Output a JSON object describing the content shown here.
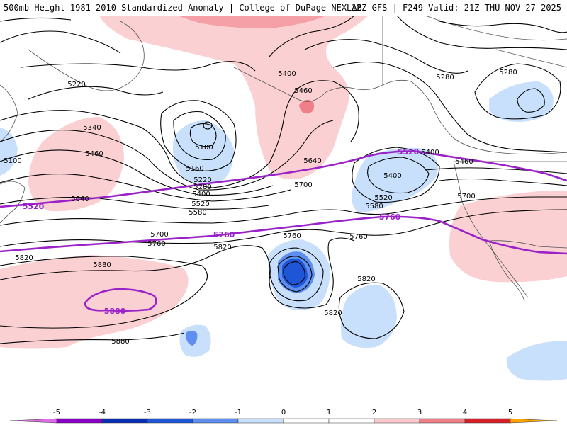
{
  "header": {
    "title": "500mb Height 1981-2010 Standardized Anomaly | College of DuPage NEXLAB",
    "run_info": "12Z GFS | F249 Valid: 21Z THU NOV 27 2025"
  },
  "contour_labels": [
    {
      "text": "5220"
    },
    {
      "text": "5340"
    },
    {
      "text": "5460"
    },
    {
      "text": "5100"
    },
    {
      "text": "5100"
    },
    {
      "text": "5160"
    },
    {
      "text": "5220"
    },
    {
      "text": "5280"
    },
    {
      "text": "5400"
    },
    {
      "text": "5520"
    },
    {
      "text": "5580"
    },
    {
      "text": "5640"
    },
    {
      "text": "5400"
    },
    {
      "text": "5460"
    },
    {
      "text": "5640"
    },
    {
      "text": "5700"
    },
    {
      "text": "5400"
    },
    {
      "text": "5520"
    },
    {
      "text": "5580"
    },
    {
      "text": "5760"
    },
    {
      "text": "5700"
    },
    {
      "text": "5760"
    },
    {
      "text": "5820"
    },
    {
      "text": "5760"
    },
    {
      "text": "5880"
    },
    {
      "text": "5820"
    },
    {
      "text": "5820"
    },
    {
      "text": "5880"
    },
    {
      "text": "5820"
    },
    {
      "text": "5280"
    },
    {
      "text": "5280"
    },
    {
      "text": "5400"
    },
    {
      "text": "5460"
    },
    {
      "text": "5700"
    }
  ],
  "purple_labels": [
    {
      "text": "5520"
    },
    {
      "text": "5520"
    },
    {
      "text": "5760"
    },
    {
      "text": "5760"
    },
    {
      "text": "5880"
    }
  ],
  "colorbar": {
    "ticks": [
      "-5",
      "-4",
      "-3",
      "-2",
      "-1",
      "0",
      "1",
      "2",
      "3",
      "4",
      "5"
    ],
    "colors": [
      "#8a00c8",
      "#0a2fb5",
      "#1f56d8",
      "#5d8ef0",
      "#c8e0fb",
      "#ffffff",
      "#ffffff",
      "#fbc8cc",
      "#f08088",
      "#d81f28",
      "#b00008",
      "#ffa500"
    ]
  }
}
